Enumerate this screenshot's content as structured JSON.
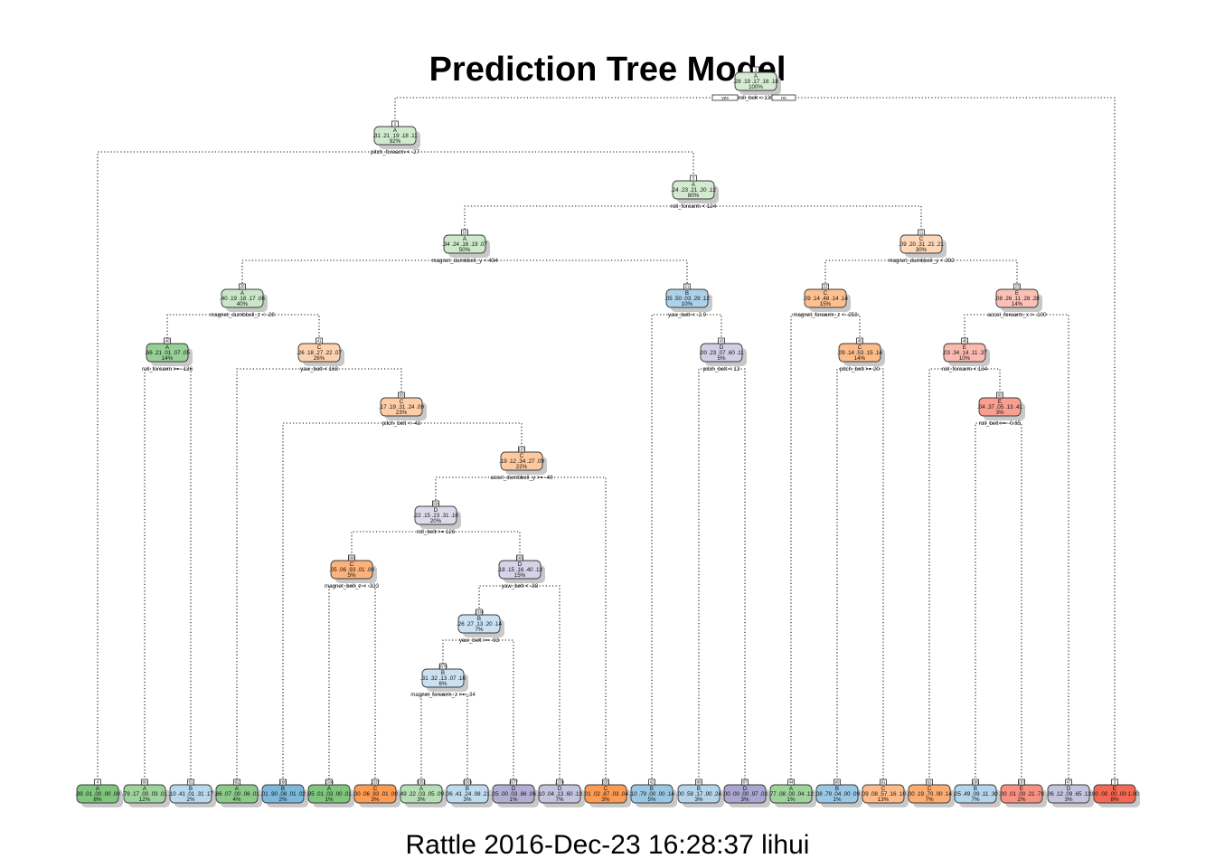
{
  "title": "Prediction Tree Model",
  "footer": "Rattle 2016-Dec-23 16:28:37 lihui",
  "root_split_yes": "yes",
  "root_split_no": "no",
  "class_colors": {
    "A": [
      "#e8f5e4",
      "#6cbc6c"
    ],
    "B": [
      "#e3eef8",
      "#6aaed6"
    ],
    "C": [
      "#fde9d6",
      "#fd8d3c"
    ],
    "D": [
      "#ecebf4",
      "#9e9ac8"
    ],
    "E": [
      "#fde3dc",
      "#f45a44"
    ]
  },
  "nodes": [
    {
      "id": "n1",
      "num": "1",
      "cls": "A",
      "probs": ".28 .19 .17 .16 .18",
      "pct": "100%",
      "split": "roll_belt < 130",
      "purity": 0.15
    },
    {
      "id": "n2",
      "num": "2",
      "cls": "A",
      "probs": ".31 .21 .19 .18 .11",
      "pct": "92%",
      "split": "pitch_forearm < -27",
      "purity": 0.2
    },
    {
      "id": "n3",
      "num": "5",
      "cls": "A",
      "probs": ".24 .23 .21 .20 .12",
      "pct": "80%",
      "split": "roll_forearm < 124",
      "purity": 0.18
    },
    {
      "id": "n4",
      "num": "10",
      "cls": "A",
      "probs": ".34 .24 .16 .19 .07",
      "pct": "50%",
      "split": "magnet_dumbbell_y < 434",
      "purity": 0.22
    },
    {
      "id": "n5",
      "num": "11",
      "cls": "C",
      "probs": ".09 .20 .31 .21 .21",
      "pct": "30%",
      "split": "magnet_dumbbell_y < 292",
      "purity": 0.2
    },
    {
      "id": "n6",
      "num": "20",
      "cls": "A",
      "probs": ".40 .19 .18 .17 .06",
      "pct": "40%",
      "split": "magnet_dumbbell_z < -28",
      "purity": 0.25
    },
    {
      "id": "n7",
      "num": "21",
      "cls": "B",
      "probs": ".05 .50 .03 .29 .12",
      "pct": "10%",
      "split": "yaw_belt < -2.9",
      "purity": 0.45
    },
    {
      "id": "n8",
      "num": "22",
      "cls": "C",
      "probs": ".09 .14 .48 .14 .14",
      "pct": "15%",
      "split": "magnet_forearm_z < -253",
      "purity": 0.45
    },
    {
      "id": "n9",
      "num": "23",
      "cls": "E",
      "probs": ".08 .26 .11 .28 .28",
      "pct": "14%",
      "split": "accel_forearm_x > -100",
      "purity": 0.25
    },
    {
      "id": "n10",
      "num": "40",
      "cls": "A",
      "probs": ".66 .21 .01 .07 .05",
      "pct": "14%",
      "split": "roll_forearm >= -136",
      "purity": 0.65
    },
    {
      "id": "n11",
      "num": "41",
      "cls": "C",
      "probs": ".26 .18 .27 .22 .07",
      "pct": "26%",
      "split": "yaw_belt < 168",
      "purity": 0.25
    },
    {
      "id": "n12",
      "num": "43",
      "cls": "D",
      "probs": ".00 .23 .07 .60 .11",
      "pct": "5%",
      "split": "pitch_belt < 13",
      "purity": 0.35
    },
    {
      "id": "n13",
      "num": "45",
      "cls": "C",
      "probs": ".09 .14 .53 .15 .14",
      "pct": "14%",
      "split": "pitch_belt >= 20",
      "purity": 0.5
    },
    {
      "id": "n14",
      "num": "46",
      "cls": "E",
      "probs": ".03 .34 .14 .11 .37",
      "pct": "10%",
      "split": "roll_forearm < 134",
      "purity": 0.3
    },
    {
      "id": "n15",
      "num": "83",
      "cls": "C",
      "probs": ".17 .19 .31 .24 .09",
      "pct": "23%",
      "split": "pitch_belt < -43",
      "purity": 0.3
    },
    {
      "id": "n16",
      "num": "93",
      "cls": "E",
      "probs": ".04 .37 .05 .13 .41",
      "pct": "3%",
      "split": "roll_belt >= -0.65",
      "purity": 0.5
    },
    {
      "id": "n17",
      "num": "167",
      "cls": "C",
      "probs": ".19 .12 .34 .27 .09",
      "pct": "22%",
      "split": "accel_dumbbell_y >= -40",
      "purity": 0.35
    },
    {
      "id": "n18",
      "num": "334",
      "cls": "D",
      "probs": ".22 .15 .23 .31 .10",
      "pct": "20%",
      "split": "roll_belt >= 126",
      "purity": 0.2
    },
    {
      "id": "n19",
      "num": "668",
      "cls": "C",
      "probs": ".05 .06 .93 .01 .00",
      "pct": "5%",
      "split": "magnet_belt_z < -323",
      "purity": 0.6
    },
    {
      "id": "n20",
      "num": "669",
      "cls": "D",
      "probs": ".18 .15 .16 .40 .13",
      "pct": "15%",
      "split": "yaw_belt < -88",
      "purity": 0.3
    },
    {
      "id": "n21",
      "num": "1338",
      "cls": "B",
      "probs": ".26 .27 .13 .20 .14",
      "pct": "7%",
      "split": "yaw_belt >= -93",
      "purity": 0.2
    },
    {
      "id": "n22",
      "num": "2676",
      "cls": "B",
      "probs": ".31 .32 .13 .07 .16",
      "pct": "6%",
      "split": "magnet_forearm_z >= -34",
      "purity": 0.2
    },
    {
      "id": "l1",
      "num": "4",
      "cls": "A",
      "probs": ".99 .01 .00 .00 .00",
      "pct": "8%",
      "split": "",
      "purity": 0.85
    },
    {
      "id": "l2",
      "num": "80",
      "cls": "A",
      "probs": ".79 .17 .00 .03 .01",
      "pct": "12%",
      "split": "",
      "purity": 0.6
    },
    {
      "id": "l3",
      "num": "81",
      "cls": "B",
      "probs": ".10 .41 .01 .31 .17",
      "pct": "2%",
      "split": "",
      "purity": 0.35
    },
    {
      "id": "l4",
      "num": "82",
      "cls": "A",
      "probs": ".86 .07 .00 .06 .01",
      "pct": "4%",
      "split": "",
      "purity": 0.75
    },
    {
      "id": "l5",
      "num": "166",
      "cls": "B",
      "probs": ".01 .90 .08 .01 .02",
      "pct": "2%",
      "split": "",
      "purity": 0.85
    },
    {
      "id": "l6",
      "num": "1336",
      "cls": "A",
      "probs": ".95 .01 .03 .00 .01",
      "pct": "1%",
      "split": "",
      "purity": 0.85
    },
    {
      "id": "l7",
      "num": "1337",
      "cls": "C",
      "probs": ".00 .06 .93 .01 .00",
      "pct": "3%",
      "split": "",
      "purity": 0.85
    },
    {
      "id": "l8",
      "num": "5352",
      "cls": "A",
      "probs": ".49 .22 .03 .05 .09",
      "pct": "3%",
      "split": "",
      "purity": 0.4
    },
    {
      "id": "l9",
      "num": "5353",
      "cls": "B",
      "probs": ".06 .41 .24 .08 .21",
      "pct": "3%",
      "split": "",
      "purity": 0.3
    },
    {
      "id": "l10",
      "num": "2677",
      "cls": "D",
      "probs": ".05 .00 .03 .86 .06",
      "pct": "1%",
      "split": "",
      "purity": 0.75
    },
    {
      "id": "l11",
      "num": "1339",
      "cls": "D",
      "probs": ".10 .04 .13 .60 .13",
      "pct": "7%",
      "split": "",
      "purity": 0.5
    },
    {
      "id": "l12",
      "num": "335",
      "cls": "C",
      "probs": ".01 .02 .87 .03 .04",
      "pct": "3%",
      "split": "",
      "purity": 0.85
    },
    {
      "id": "l13",
      "num": "42",
      "cls": "B",
      "probs": ".10 .79 .00 .00 .14",
      "pct": "5%",
      "split": "",
      "purity": 0.6
    },
    {
      "id": "l14",
      "num": "86",
      "cls": "B",
      "probs": ".00 .59 .17 .00 .24",
      "pct": "3%",
      "split": "",
      "purity": 0.4
    },
    {
      "id": "l15",
      "num": "87",
      "cls": "D",
      "probs": ".00 .00 .00 .97 .03",
      "pct": "3%",
      "split": "",
      "purity": 0.85
    },
    {
      "id": "l16",
      "num": "44",
      "cls": "A",
      "probs": ".77 .08 .00 .04 .12",
      "pct": "1%",
      "split": "",
      "purity": 0.6
    },
    {
      "id": "l17",
      "num": "90",
      "cls": "B",
      "probs": ".08 .79 .04 .00 .09",
      "pct": "1%",
      "split": "",
      "purity": 0.6
    },
    {
      "id": "l18",
      "num": "91",
      "cls": "C",
      "probs": ".09 .08 .57 .16 .10",
      "pct": "13%",
      "split": "",
      "purity": 0.5
    },
    {
      "id": "l19",
      "num": "92",
      "cls": "C",
      "probs": ".00 .19 .70 .00 .14",
      "pct": "7%",
      "split": "",
      "purity": 0.65
    },
    {
      "id": "l20",
      "num": "186",
      "cls": "B",
      "probs": ".05 .49 .09 .11 .30",
      "pct": "7%",
      "split": "",
      "purity": 0.4
    },
    {
      "id": "l21",
      "num": "187",
      "cls": "E",
      "probs": ".00 .01 .00 .21 .78",
      "pct": "2%",
      "split": "",
      "purity": 0.6
    },
    {
      "id": "l22",
      "num": "47",
      "cls": "D",
      "probs": ".06 .12 .09 .65 .13",
      "pct": "3%",
      "split": "",
      "purity": 0.5
    },
    {
      "id": "l23",
      "num": "3",
      "cls": "E",
      "probs": ".00 .00 .00 .00 1.00",
      "pct": "8%",
      "split": "",
      "purity": 0.9
    }
  ],
  "edges": [
    [
      "n1",
      "n2"
    ],
    [
      "n1",
      "l23"
    ],
    [
      "n2",
      "l1"
    ],
    [
      "n2",
      "n3"
    ],
    [
      "n3",
      "n4"
    ],
    [
      "n3",
      "n5"
    ],
    [
      "n4",
      "n6"
    ],
    [
      "n4",
      "n7"
    ],
    [
      "n5",
      "n8"
    ],
    [
      "n5",
      "n9"
    ],
    [
      "n6",
      "n10"
    ],
    [
      "n6",
      "n11"
    ],
    [
      "n10",
      "l2"
    ],
    [
      "n10",
      "l3"
    ],
    [
      "n11",
      "l4"
    ],
    [
      "n11",
      "n15"
    ],
    [
      "n15",
      "l5"
    ],
    [
      "n15",
      "n17"
    ],
    [
      "n17",
      "n18"
    ],
    [
      "n17",
      "l12"
    ],
    [
      "n18",
      "n19"
    ],
    [
      "n18",
      "n20"
    ],
    [
      "n19",
      "l6"
    ],
    [
      "n19",
      "l7"
    ],
    [
      "n20",
      "n21"
    ],
    [
      "n20",
      "l11"
    ],
    [
      "n21",
      "n22"
    ],
    [
      "n21",
      "l10"
    ],
    [
      "n22",
      "l8"
    ],
    [
      "n22",
      "l9"
    ],
    [
      "n7",
      "l13"
    ],
    [
      "n7",
      "n12"
    ],
    [
      "n12",
      "l14"
    ],
    [
      "n12",
      "l15"
    ],
    [
      "n8",
      "l16"
    ],
    [
      "n8",
      "n13"
    ],
    [
      "n13",
      "l17"
    ],
    [
      "n13",
      "l18"
    ],
    [
      "n9",
      "n14"
    ],
    [
      "n9",
      "l22"
    ],
    [
      "n14",
      "l19"
    ],
    [
      "n14",
      "n16"
    ],
    [
      "n16",
      "l20"
    ],
    [
      "n16",
      "l21"
    ]
  ]
}
